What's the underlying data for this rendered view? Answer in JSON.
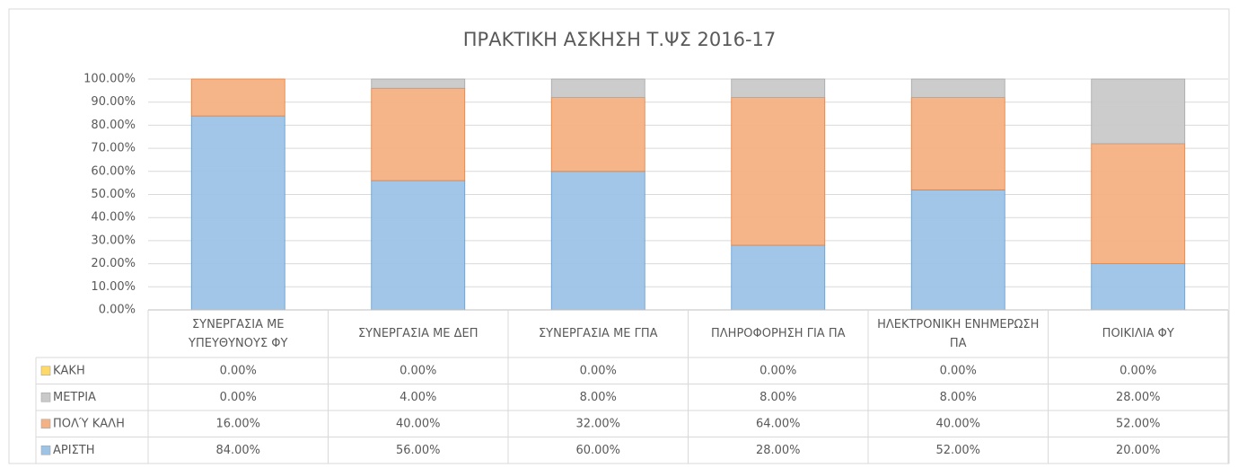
{
  "chart_data": {
    "type": "stacked_bar",
    "title": "ΠΡΑΚΤΙΚΗ  ΑΣΚΗΣΗ Τ.ΨΣ 2016-17",
    "categories": [
      "ΣΥΝΕΡΓΑΣΙΑ ΜΕ ΥΠΕΥΘΥΝΟΥΣ ΦΥ",
      "ΣΥΝΕΡΓΑΣΙΑ ΜΕ ΔΕΠ",
      "ΣΥΝΕΡΓΑΣΙΑ ΜΕ ΓΠΑ",
      "ΠΛΗΡΟΦΟΡΗΣΗ ΓΙΑ ΠΑ",
      "ΗΛΕΚΤΡΟΝΙΚΗ ΕΝΗΜΕΡΩΣΗ ΠΑ",
      "ΠΟΙΚΙΛΙΑ ΦΥ"
    ],
    "series": [
      {
        "name": "ΑΡΙΣΤΗ",
        "color": "#9dc3e6",
        "values": [
          84,
          56,
          60,
          28,
          52,
          20
        ],
        "value_labels": [
          "84.00%",
          "56.00%",
          "60.00%",
          "28.00%",
          "52.00%",
          "20.00%"
        ]
      },
      {
        "name": "ΠΟΛΎ ΚΑΛΗ",
        "color": "#f4b183",
        "values": [
          16,
          40,
          32,
          64,
          40,
          52
        ],
        "value_labels": [
          "16.00%",
          "40.00%",
          "32.00%",
          "64.00%",
          "40.00%",
          "52.00%"
        ]
      },
      {
        "name": "ΜΕΤΡΙΑ",
        "color": "#c9c9c9",
        "values": [
          0,
          4,
          8,
          8,
          8,
          28
        ],
        "value_labels": [
          "0.00%",
          "4.00%",
          "8.00%",
          "8.00%",
          "8.00%",
          "28.00%"
        ]
      },
      {
        "name": "ΚΑΚΗ",
        "color": "#ffd966",
        "values": [
          0,
          0,
          0,
          0,
          0,
          0
        ],
        "value_labels": [
          "0.00%",
          "0.00%",
          "0.00%",
          "0.00%",
          "0.00%",
          "0.00%"
        ]
      }
    ],
    "ylim": [
      0,
      100
    ],
    "yticks": [
      {
        "value": 0,
        "label": "0.00%"
      },
      {
        "value": 10,
        "label": "10.00%"
      },
      {
        "value": 20,
        "label": "20.00%"
      },
      {
        "value": 30,
        "label": "30.00%"
      },
      {
        "value": 40,
        "label": "40.00%"
      },
      {
        "value": 50,
        "label": "50.00%"
      },
      {
        "value": 60,
        "label": "60.00%"
      },
      {
        "value": 70,
        "label": "70.00%"
      },
      {
        "value": 80,
        "label": "80.00%"
      },
      {
        "value": 90,
        "label": "90.00%"
      },
      {
        "value": 100,
        "label": "100.00%"
      }
    ],
    "grid": true
  }
}
